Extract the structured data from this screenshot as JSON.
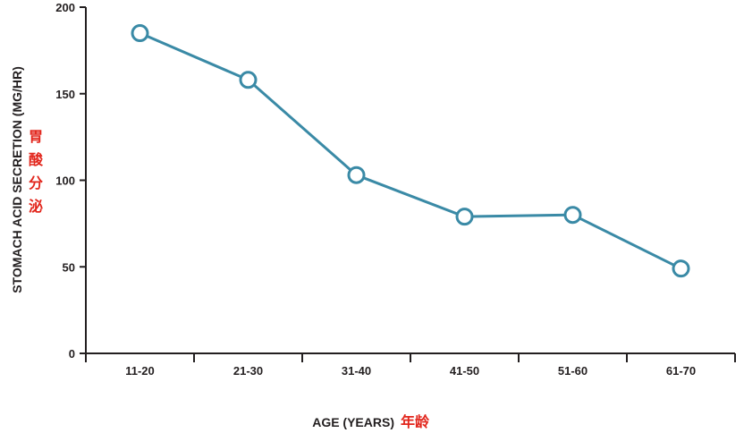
{
  "colors": {
    "line": "#3a8aa6",
    "marker_fill": "#ffffff",
    "axis": "#231f20",
    "text": "#231f20",
    "chinese_label": "#e2261c"
  },
  "chart_data": {
    "type": "line",
    "categories": [
      "11-20",
      "21-30",
      "31-40",
      "41-50",
      "51-60",
      "61-70"
    ],
    "values": [
      185,
      158,
      103,
      79,
      80,
      49
    ],
    "xlabel": "AGE (YEARS)",
    "xlabel_cn": "年龄",
    "ylabel": "STOMACH ACID SECRETION (MG/HR)",
    "ylabel_cn": [
      "胃",
      "酸",
      "分",
      "泌"
    ],
    "yticks": [
      0,
      50,
      100,
      150,
      200
    ],
    "ylim": [
      0,
      200
    ],
    "grid": false,
    "legend": "none",
    "marker": "open-circle"
  }
}
